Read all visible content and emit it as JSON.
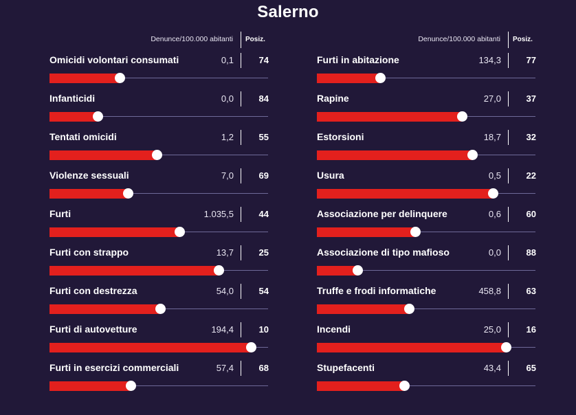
{
  "title": "Salerno",
  "header": {
    "metric_label": "Denunce/100.000 abitanti",
    "position_label": "Posiz."
  },
  "colors": {
    "background": "#211838",
    "bar": "#e3201d",
    "track": "#6f6a99",
    "knob": "#ffffff"
  },
  "columns": [
    {
      "items": [
        {
          "label": "Omicidi volontari consumati",
          "value": "0,1",
          "position": "74",
          "level": 0.32
        },
        {
          "label": "Infanticidi",
          "value": "0,0",
          "position": "84",
          "level": 0.22
        },
        {
          "label": "Tentati omicidi",
          "value": "1,2",
          "position": "55",
          "level": 0.49
        },
        {
          "label": "Violenze sessuali",
          "value": "7,0",
          "position": "69",
          "level": 0.36
        },
        {
          "label": "Furti",
          "value": "1.035,5",
          "position": "44",
          "level": 0.595
        },
        {
          "label": "Furti con strappo",
          "value": "13,7",
          "position": "25",
          "level": 0.775
        },
        {
          "label": "Furti con destrezza",
          "value": "54,0",
          "position": "54",
          "level": 0.505
        },
        {
          "label": "Furti di autovetture",
          "value": "194,4",
          "position": "10",
          "level": 0.92
        },
        {
          "label": "Furti in esercizi commerciali",
          "value": "57,4",
          "position": "68",
          "level": 0.37
        }
      ]
    },
    {
      "items": [
        {
          "label": "Furti in abitazione",
          "value": "134,3",
          "position": "77",
          "level": 0.29
        },
        {
          "label": "Rapine",
          "value": "27,0",
          "position": "37",
          "level": 0.665
        },
        {
          "label": "Estorsioni",
          "value": "18,7",
          "position": "32",
          "level": 0.71
        },
        {
          "label": "Usura",
          "value": "0,5",
          "position": "22",
          "level": 0.805
        },
        {
          "label": "Associazione per delinquere",
          "value": "0,6",
          "position": "60",
          "level": 0.45
        },
        {
          "label": "Associazione di tipo mafioso",
          "value": "0,0",
          "position": "88",
          "level": 0.185
        },
        {
          "label": "Truffe e frodi informatiche",
          "value": "458,8",
          "position": "63",
          "level": 0.42
        },
        {
          "label": "Incendi",
          "value": "25,0",
          "position": "16",
          "level": 0.865
        },
        {
          "label": "Stupefacenti",
          "value": "43,4",
          "position": "65",
          "level": 0.4
        }
      ]
    }
  ]
}
